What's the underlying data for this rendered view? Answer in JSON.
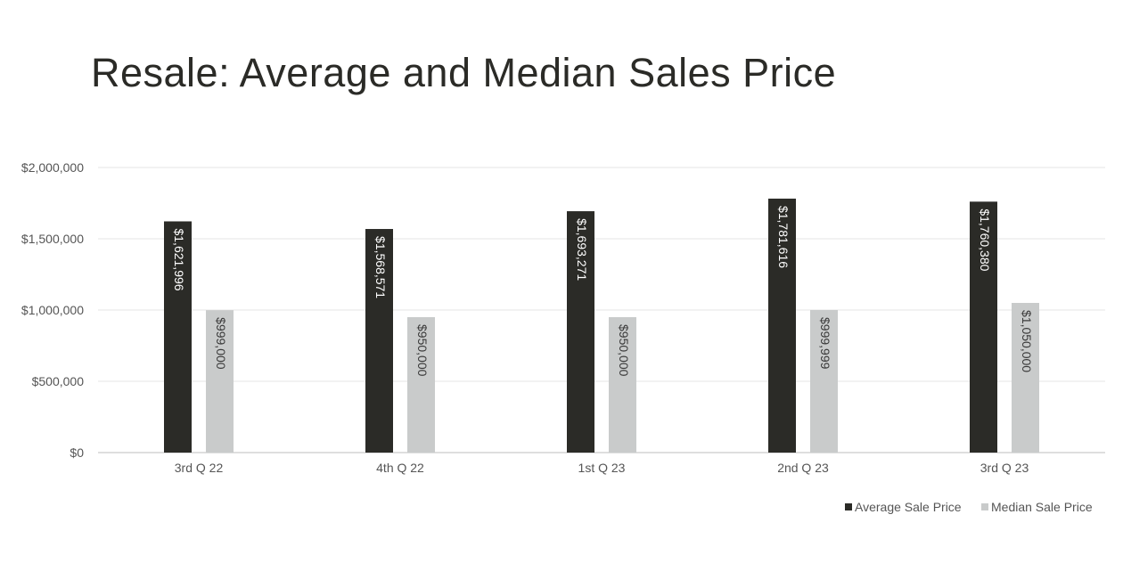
{
  "chart_data": {
    "type": "bar",
    "title": "Resale: Average and Median Sales Price",
    "categories": [
      "3rd Q 22",
      "4th Q 22",
      "1st Q 23",
      "2nd Q 23",
      "3rd Q 23"
    ],
    "series": [
      {
        "name": "Average Sale Price",
        "values": [
          1621996,
          1568571,
          1693271,
          1781616,
          1760380
        ],
        "labels": [
          "$1,621,996",
          "$1,568,571",
          "$1,693,271",
          "$1,781,616",
          "$1,760,380"
        ],
        "color": "#2b2b27",
        "label_color": "#ffffff"
      },
      {
        "name": "Median Sale Price",
        "values": [
          999000,
          950000,
          950000,
          999999,
          1050000
        ],
        "labels": [
          "$999,000",
          "$950,000",
          "$950,000",
          "$999,999",
          "$1,050,000"
        ],
        "color": "#c9cbcb",
        "label_color": "#3a3a3a"
      }
    ],
    "y_ticks": [
      0,
      500000,
      1000000,
      1500000,
      2000000
    ],
    "y_tick_labels": [
      "$0",
      "$500,000",
      "$1,000,000",
      "$1,500,000",
      "$2,000,000"
    ],
    "ylim": [
      0,
      2000000
    ],
    "grid": true,
    "legend_position": "bottom-right",
    "data_labels": "vertical-inside"
  }
}
